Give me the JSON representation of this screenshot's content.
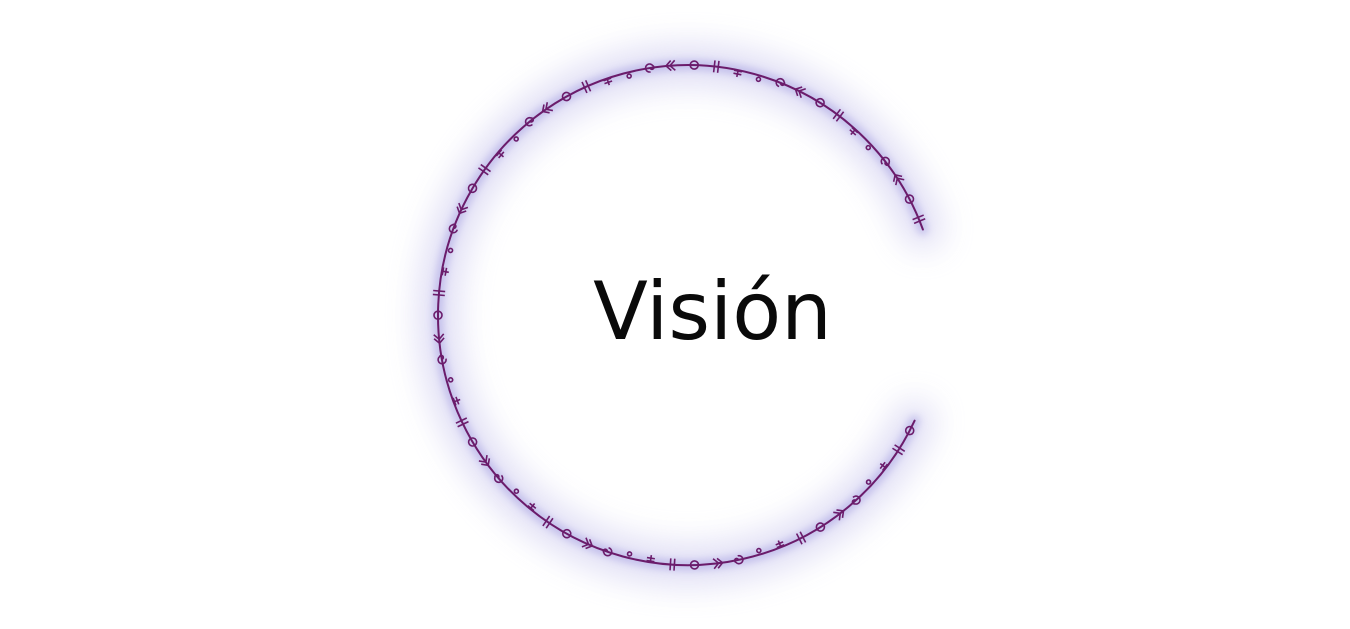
{
  "title": "Visión",
  "colors": {
    "background": "#ffffff",
    "ring_line": "#6b1c6b",
    "glow": "#b9b5e8",
    "text": "#0a0a0a"
  },
  "decoration": {
    "type": "open-ring-with-glyphs",
    "glyph_names": [
      "double-bar",
      "circle",
      "chevron",
      "spiral",
      "dot",
      "trident"
    ]
  }
}
